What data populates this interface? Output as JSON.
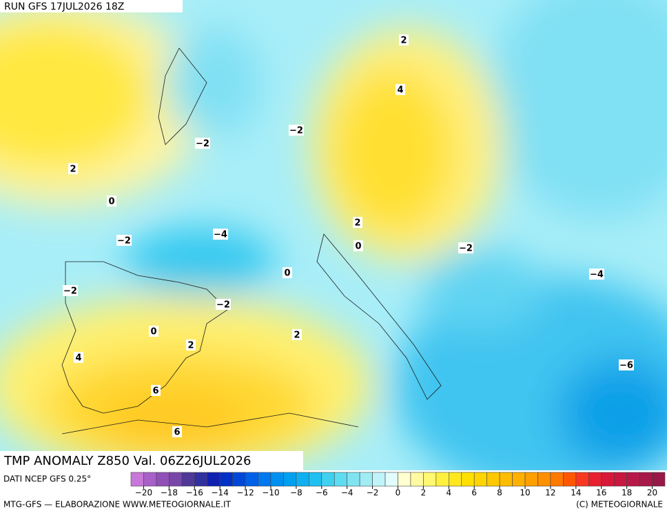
{
  "header": {
    "run": "RUN GFS 17JUL2026 18Z",
    "title": "TMP ANOMALY Z850 Val. 06Z26JUL2026"
  },
  "map": {
    "labels": [
      "2",
      "4",
      "−2",
      "−2",
      "2",
      "0",
      "−2",
      "−4",
      "2",
      "0",
      "−2",
      "0",
      "−4",
      "−2",
      "−2",
      "0",
      "2",
      "2",
      "4",
      "−6",
      "6",
      "6"
    ]
  },
  "footer": {
    "source": "DATI NCEP GFS 0.25°",
    "credit": "MTG-GFS — ELABORAZIONE WWW.METEOGIORNALE.IT",
    "copyright": "(C) METEOGIORNALE"
  },
  "colorbar": {
    "colors": [
      "#c878d8",
      "#a860c8",
      "#9050b8",
      "#7848a8",
      "#503898",
      "#3030a0",
      "#1020b0",
      "#0030c8",
      "#0048d8",
      "#0060e8",
      "#0078f0",
      "#0090f0",
      "#00a0f0",
      "#10b0f0",
      "#20c0f0",
      "#40d0f0",
      "#60dcf0",
      "#80e4f0",
      "#a0ecf4",
      "#c0f4f8",
      "#e0fcfc",
      "#ffffd0",
      "#fffaa0",
      "#fff870",
      "#fff040",
      "#ffe820",
      "#ffe000",
      "#ffd400",
      "#ffc800",
      "#ffbc00",
      "#ffb000",
      "#ffa000",
      "#ff9000",
      "#ff7800",
      "#ff5800",
      "#f83820",
      "#e82030",
      "#d81838",
      "#c81840",
      "#b81848",
      "#a81848",
      "#981848"
    ],
    "labels": [
      "−20",
      "−18",
      "−16",
      "−14",
      "−12",
      "−10",
      "−8",
      "−6",
      "−4",
      "−2",
      "0",
      "2",
      "4",
      "6",
      "8",
      "10",
      "12",
      "14",
      "16",
      "18",
      "20"
    ]
  }
}
